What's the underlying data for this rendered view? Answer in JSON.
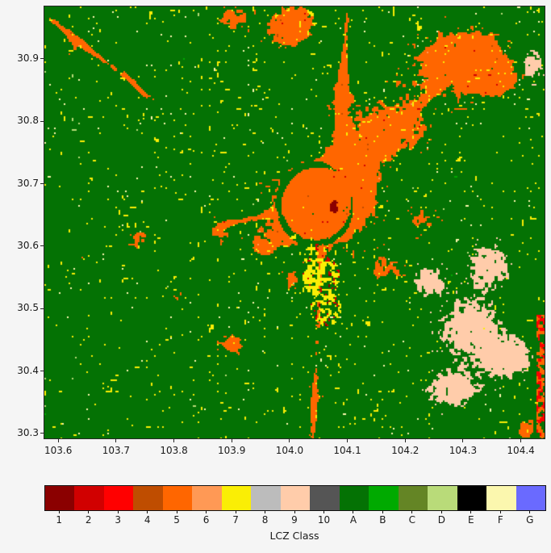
{
  "figure": {
    "background": "#f5f5f5",
    "frame_color": "#262626",
    "text_color": "#1a1a1a"
  },
  "chart_data": {
    "type": "heatmap",
    "subtype": "categorical LCZ classification raster map",
    "title": "",
    "xlabel": "",
    "ylabel": "",
    "legend_label": "LCZ Class",
    "xlim": [
      103.576,
      104.441
    ],
    "ylim": [
      30.292,
      30.984
    ],
    "x_ticks": [
      103.6,
      103.7,
      103.8,
      103.9,
      104.0,
      104.1,
      104.2,
      104.3,
      104.4
    ],
    "y_ticks": [
      30.9,
      30.8,
      30.7,
      30.6,
      30.5,
      30.4,
      30.3
    ],
    "grid": false,
    "legend_position": "bottom horizontal colorbar",
    "classes": [
      {
        "id": "1",
        "color": "#8B0000"
      },
      {
        "id": "2",
        "color": "#D10000"
      },
      {
        "id": "3",
        "color": "#FF0000"
      },
      {
        "id": "4",
        "color": "#BF4D00"
      },
      {
        "id": "5",
        "color": "#FF6600"
      },
      {
        "id": "6",
        "color": "#FF9955"
      },
      {
        "id": "7",
        "color": "#FAEE05"
      },
      {
        "id": "8",
        "color": "#BCBCBC"
      },
      {
        "id": "9",
        "color": "#FFCCAA"
      },
      {
        "id": "10",
        "color": "#555555"
      },
      {
        "id": "A",
        "color": "#047204"
      },
      {
        "id": "B",
        "color": "#00AA00"
      },
      {
        "id": "C",
        "color": "#648525"
      },
      {
        "id": "D",
        "color": "#B9DB79"
      },
      {
        "id": "E",
        "color": "#000000"
      },
      {
        "id": "F",
        "color": "#FBF7AE"
      },
      {
        "id": "G",
        "color": "#6A6AFF"
      }
    ],
    "map_model": {
      "cell": 2,
      "background_class": "A",
      "urban_class": "5",
      "urban_blobs": [
        [
          104.05,
          30.665,
          0.085,
          0.07,
          1.15
        ],
        [
          104.105,
          30.705,
          0.055,
          0.05,
          0.8
        ],
        [
          104.17,
          30.79,
          0.09,
          0.055,
          0.75
        ],
        [
          104.3,
          30.9,
          0.1,
          0.065,
          0.85
        ],
        [
          104.005,
          30.95,
          0.05,
          0.045,
          0.75
        ],
        [
          103.9,
          30.965,
          0.04,
          0.03,
          0.6
        ],
        [
          104.09,
          30.86,
          0.025,
          0.05,
          0.5
        ],
        [
          103.875,
          30.625,
          0.04,
          0.025,
          0.55
        ],
        [
          103.74,
          30.615,
          0.03,
          0.025,
          0.5
        ],
        [
          103.655,
          30.585,
          0.025,
          0.02,
          0.45
        ],
        [
          103.9,
          30.445,
          0.035,
          0.025,
          0.6
        ],
        [
          103.805,
          30.52,
          0.025,
          0.02,
          0.5
        ],
        [
          104.05,
          30.35,
          0.03,
          0.045,
          0.5
        ],
        [
          104.165,
          30.565,
          0.05,
          0.038,
          0.55
        ],
        [
          104.235,
          30.645,
          0.042,
          0.036,
          0.5
        ],
        [
          104.36,
          30.865,
          0.04,
          0.03,
          0.5
        ],
        [
          103.625,
          30.92,
          0.03,
          0.025,
          0.45
        ],
        [
          104.41,
          30.305,
          0.022,
          0.03,
          0.6
        ],
        [
          103.955,
          30.6,
          0.035,
          0.03,
          0.5
        ],
        [
          104.005,
          30.545,
          0.03,
          0.025,
          0.5
        ]
      ],
      "corridors": [
        [
          103.585,
          30.965,
          103.765,
          30.835,
          0.006,
          0.55
        ],
        [
          104.1,
          30.97,
          104.085,
          30.77,
          0.006,
          0.5
        ],
        [
          104.055,
          30.6,
          104.04,
          30.295,
          0.0055,
          0.45
        ],
        [
          104.09,
          30.71,
          104.31,
          30.9,
          0.0065,
          0.45
        ],
        [
          103.88,
          30.635,
          103.99,
          30.655,
          0.005,
          0.4
        ],
        [
          103.7,
          30.9,
          103.78,
          30.8,
          0.004,
          0.3
        ]
      ],
      "green_ring": {
        "cx": 104.045,
        "cy": 30.668,
        "r": 0.063,
        "w": 0.0065,
        "depth": 0.85
      },
      "red_core": {
        "x": 104.078,
        "y": 30.664,
        "r": 0.0095
      },
      "mix_zones": [
        [
          104.055,
          30.552,
          0.033
        ],
        [
          104.063,
          30.5,
          0.027
        ],
        [
          104.045,
          30.585,
          0.02
        ]
      ],
      "peach_blobs": [
        [
          104.31,
          30.47,
          0.06,
          0.055
        ],
        [
          104.345,
          30.57,
          0.042,
          0.038
        ],
        [
          104.28,
          30.37,
          0.05,
          0.032
        ],
        [
          104.42,
          30.89,
          0.02,
          0.028
        ],
        [
          104.24,
          30.545,
          0.028,
          0.028
        ],
        [
          104.38,
          30.42,
          0.045,
          0.04
        ]
      ],
      "red_strip": {
        "lon_min": 104.428,
        "lat_max": 30.49
      },
      "params": {
        "urban_threshold": 0.5,
        "yellow_patch_in_urban": 0.93,
        "urban_fringe_yellow": 0.86,
        "maroon_speck_in_urban": 0.965,
        "brown_speck_in_urban": 0.962,
        "fringe_salmon": 0.93,
        "yellow_speck_base": 0.93,
        "yellow_speck_dense": 0.895,
        "pale_speck": 0.975,
        "lightgreen_speck": 0.985,
        "brightgreen_speck": 0.993,
        "peach_threshold": 0.5,
        "peach_speck": 0.92
      }
    }
  }
}
